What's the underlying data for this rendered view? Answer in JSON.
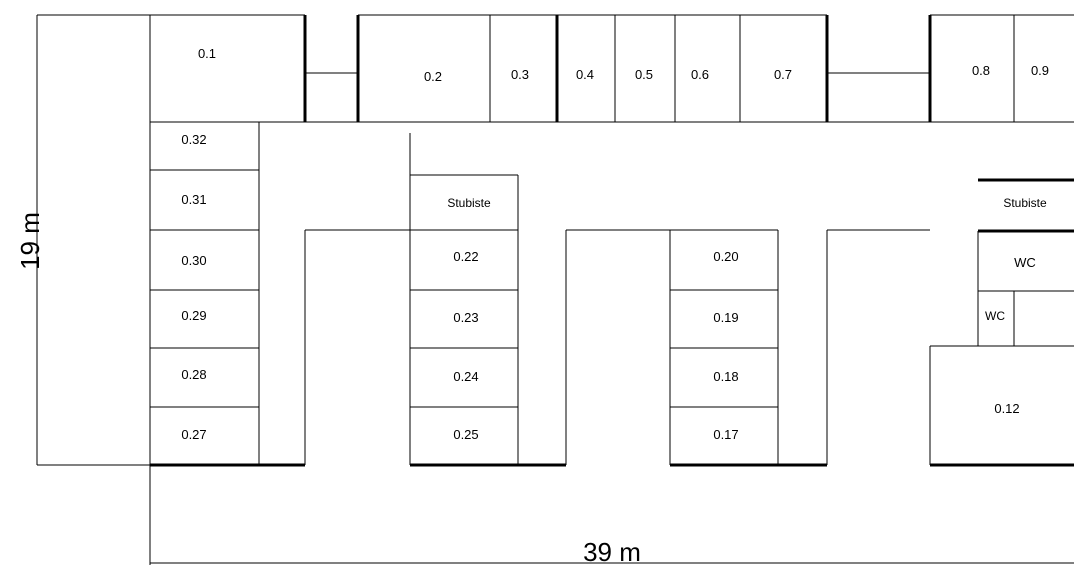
{
  "rooms": {
    "r01": "0.1",
    "r02": "0.2",
    "r03": "0.3",
    "r04": "0.4",
    "r05": "0.5",
    "r06": "0.6",
    "r07": "0.7",
    "r08": "0.8",
    "r09": "0.9",
    "r12": "0.12",
    "r17": "0.17",
    "r18": "0.18",
    "r19": "0.19",
    "r20": "0.20",
    "r22": "0.22",
    "r23": "0.23",
    "r24": "0.24",
    "r25": "0.25",
    "r27": "0.27",
    "r28": "0.28",
    "r29": "0.29",
    "r30": "0.30",
    "r31": "0.31",
    "r32": "0.32"
  },
  "stairs": {
    "left": "Stubiste",
    "right": "Stubiste"
  },
  "wc": {
    "large": "WC",
    "small": "WC"
  },
  "dimensions": {
    "width": "39 m",
    "height": "19 m"
  }
}
